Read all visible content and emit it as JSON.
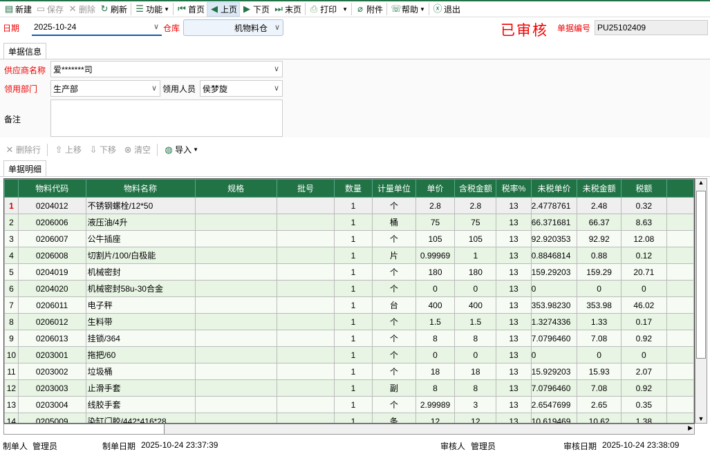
{
  "toolbar": {
    "new": "新建",
    "save": "保存",
    "delete": "删除",
    "refresh": "刷新",
    "function": "功能",
    "first": "首页",
    "prev": "上页",
    "next": "下页",
    "last": "末页",
    "print": "打印",
    "attach": "附件",
    "help": "帮助",
    "exit": "退出"
  },
  "header": {
    "date_label": "日期",
    "date_value": "2025-10-24",
    "warehouse_label": "仓库",
    "warehouse_value": "机物料仓",
    "status_stamp": "已审核",
    "doc_no_label": "单据编号",
    "doc_no_value": "PU25102409"
  },
  "info": {
    "tab": "单据信息",
    "supplier_label": "供应商名称",
    "supplier_value": "爱*******司",
    "dept_label": "领用部门",
    "dept_value": "生产部",
    "person_label": "领用人员",
    "person_value": "侯梦旋",
    "remark_label": "备注",
    "remark_value": ""
  },
  "detail_toolbar": {
    "delete_row": "删除行",
    "move_up": "上移",
    "move_down": "下移",
    "clear": "清空",
    "import": "导入"
  },
  "detail": {
    "tab": "单据明细",
    "columns": [
      "物料代码",
      "物料名称",
      "规格",
      "批号",
      "数量",
      "计量单位",
      "单价",
      "含税金额",
      "税率%",
      "未税单价",
      "未税金额",
      "税额"
    ],
    "rows": [
      [
        "1",
        "0204012",
        "不锈钢螺栓/12*50",
        "",
        "",
        "1",
        "个",
        "2.8",
        "2.8",
        "13",
        "2.4778761",
        "2.48",
        "0.32"
      ],
      [
        "2",
        "0206006",
        "液压油/4升",
        "",
        "",
        "1",
        "桶",
        "75",
        "75",
        "13",
        "66.371681",
        "66.37",
        "8.63"
      ],
      [
        "3",
        "0206007",
        "公牛插座",
        "",
        "",
        "1",
        "个",
        "105",
        "105",
        "13",
        "92.920353",
        "92.92",
        "12.08"
      ],
      [
        "4",
        "0206008",
        "切割片/100/白极能",
        "",
        "",
        "1",
        "片",
        "0.99969",
        "1",
        "13",
        "0.8846814",
        "0.88",
        "0.12"
      ],
      [
        "5",
        "0204019",
        "机械密封",
        "",
        "",
        "1",
        "个",
        "180",
        "180",
        "13",
        "159.29203",
        "159.29",
        "20.71"
      ],
      [
        "6",
        "0204020",
        "机械密封58u-30合金",
        "",
        "",
        "1",
        "个",
        "0",
        "0",
        "13",
        "0",
        "0",
        "0"
      ],
      [
        "7",
        "0206011",
        "电子秤",
        "",
        "",
        "1",
        "台",
        "400",
        "400",
        "13",
        "353.98230",
        "353.98",
        "46.02"
      ],
      [
        "8",
        "0206012",
        "生料带",
        "",
        "",
        "1",
        "个",
        "1.5",
        "1.5",
        "13",
        "1.3274336",
        "1.33",
        "0.17"
      ],
      [
        "9",
        "0206013",
        "挂锁/364",
        "",
        "",
        "1",
        "个",
        "8",
        "8",
        "13",
        "7.0796460",
        "7.08",
        "0.92"
      ],
      [
        "10",
        "0203001",
        "拖把/60",
        "",
        "",
        "1",
        "个",
        "0",
        "0",
        "13",
        "0",
        "0",
        "0"
      ],
      [
        "11",
        "0203002",
        "垃圾桶",
        "",
        "",
        "1",
        "个",
        "18",
        "18",
        "13",
        "15.929203",
        "15.93",
        "2.07"
      ],
      [
        "12",
        "0203003",
        "止滑手套",
        "",
        "",
        "1",
        "副",
        "8",
        "8",
        "13",
        "7.0796460",
        "7.08",
        "0.92"
      ],
      [
        "13",
        "0203004",
        "线胶手套",
        "",
        "",
        "1",
        "个",
        "2.99989",
        "3",
        "13",
        "2.6547699",
        "2.65",
        "0.35"
      ],
      [
        "14",
        "0205009",
        "染缸门胶/442*416*28",
        "",
        "",
        "1",
        "条",
        "12",
        "12",
        "13",
        "10.619469",
        "10.62",
        "1.38"
      ]
    ]
  },
  "footer": {
    "maker_label": "制单人",
    "maker": "管理员",
    "make_date_label": "制单日期",
    "make_date": "2025-10-24 23:37:39",
    "auditor_label": "审核人",
    "auditor": "管理员",
    "audit_date_label": "审核日期",
    "audit_date": "2025-10-24 23:38:09"
  },
  "colors": {
    "accent": "#217346",
    "required": "#e00000"
  }
}
